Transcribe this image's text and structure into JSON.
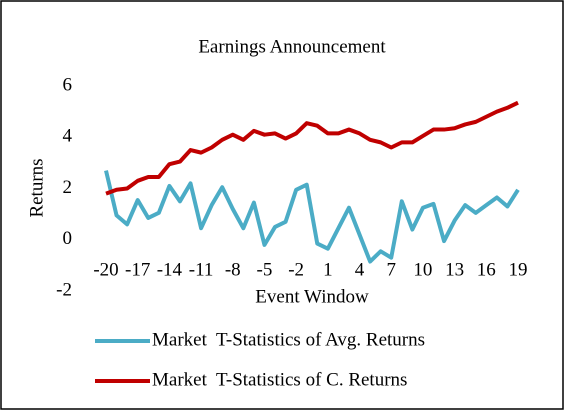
{
  "chart_data": {
    "type": "line",
    "title": "Earnings Announcement",
    "x_label": "Event Window",
    "y_label": "Returns",
    "categories": [
      -20,
      null,
      null,
      -17,
      null,
      null,
      -14,
      null,
      null,
      -11,
      null,
      null,
      -8,
      null,
      null,
      -5,
      null,
      null,
      -2,
      null,
      null,
      1,
      null,
      null,
      4,
      null,
      null,
      7,
      null,
      null,
      10,
      null,
      null,
      13,
      null,
      null,
      16,
      null,
      null,
      19
    ],
    "series": [
      {
        "name": "Market  T-Statistics of Avg. Returns",
        "color": "#4bacc6",
        "values": [
          2.7,
          0.95,
          0.6,
          1.55,
          0.85,
          1.05,
          2.1,
          1.5,
          2.2,
          0.45,
          1.35,
          2.05,
          1.2,
          0.45,
          1.45,
          -0.2,
          0.5,
          0.7,
          1.95,
          2.15,
          -0.15,
          -0.35,
          0.45,
          1.25,
          0.2,
          -0.85,
          -0.45,
          -0.7,
          1.5,
          0.4,
          1.25,
          1.4,
          -0.05,
          0.75,
          1.35,
          1.05,
          1.35,
          1.65,
          1.3,
          1.95
        ]
      },
      {
        "name": "Market  T-Statistics of C. Returns",
        "color": "#c00000",
        "values": [
          1.8,
          1.95,
          2.0,
          2.3,
          2.45,
          2.45,
          2.95,
          3.05,
          3.5,
          3.4,
          3.6,
          3.9,
          4.1,
          3.9,
          4.25,
          4.1,
          4.15,
          3.95,
          4.15,
          4.55,
          4.45,
          4.15,
          4.15,
          4.3,
          4.15,
          3.9,
          3.8,
          3.6,
          3.8,
          3.8,
          4.05,
          4.3,
          4.3,
          4.35,
          4.5,
          4.6,
          4.8,
          5.0,
          5.15,
          5.35
        ]
      }
    ],
    "ylim": [
      -2,
      6
    ],
    "yticks": [
      -2,
      0,
      2,
      4,
      6
    ],
    "grid": false,
    "legend": "bottom"
  }
}
